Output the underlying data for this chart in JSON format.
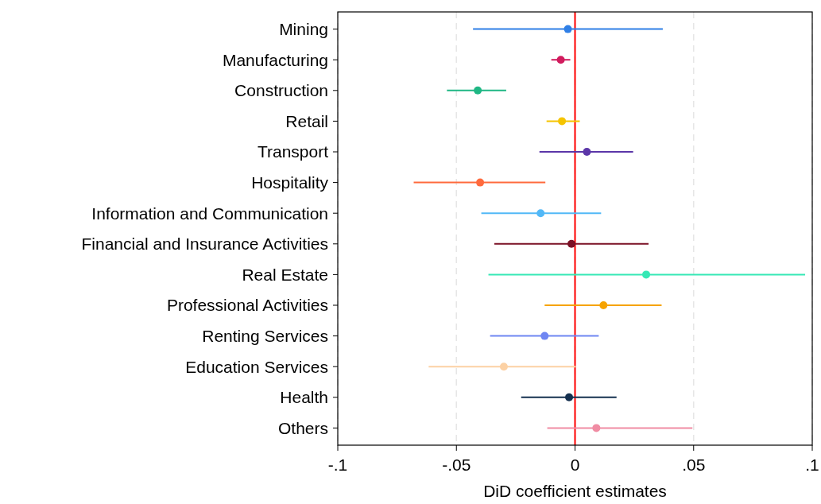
{
  "chart_data": {
    "type": "scatter",
    "orientation": "horizontal",
    "xlabel": "DiD coefficient estimates",
    "categories": [
      "Mining",
      "Manufacturing",
      "Construction",
      "Retail",
      "Transport",
      "Hospitality",
      "Information and Communication",
      "Financial and Insurance Activities",
      "Real Estate",
      "Professional Activities",
      "Renting Services",
      "Education Services",
      "Health",
      "Others"
    ],
    "values": [
      -0.003,
      -0.006,
      -0.041,
      -0.0055,
      0.005,
      -0.04,
      -0.0145,
      -0.0015,
      0.03,
      0.012,
      -0.0128,
      -0.03,
      -0.0025,
      0.009
    ],
    "errors": [
      [
        -0.043,
        0.037
      ],
      [
        -0.01,
        -0.002
      ],
      [
        -0.054,
        -0.029
      ],
      [
        -0.012,
        0.002
      ],
      [
        -0.015,
        0.0245
      ],
      [
        -0.068,
        -0.0125
      ],
      [
        -0.0395,
        0.011
      ],
      [
        -0.034,
        0.031
      ],
      [
        -0.0365,
        0.097
      ],
      [
        -0.0128,
        0.0365
      ],
      [
        -0.0358,
        0.01
      ],
      [
        -0.0617,
        0.0003
      ],
      [
        -0.0227,
        0.0175
      ],
      [
        -0.0117,
        0.0495
      ]
    ],
    "colors": [
      "#2f7fe6",
      "#d11b5d",
      "#1fb784",
      "#f5c400",
      "#5b36a8",
      "#ff6a3d",
      "#52b8f7",
      "#7a1025",
      "#36e8b5",
      "#f6a300",
      "#6f86f2",
      "#fcd1a4",
      "#14304f",
      "#f08ca3"
    ],
    "xlim": [
      -0.1,
      0.1
    ],
    "xticks": [
      {
        "value": -0.1,
        "label": "-.1"
      },
      {
        "value": -0.05,
        "label": "-.05"
      },
      0,
      {
        "value": 0.05,
        "label": ".05"
      },
      {
        "value": 0.1,
        "label": ".1"
      }
    ],
    "grid": "x",
    "marker": "circle",
    "ref_lines": [
      {
        "axis": "x",
        "value": 0,
        "color": "#ff0000"
      }
    ]
  }
}
